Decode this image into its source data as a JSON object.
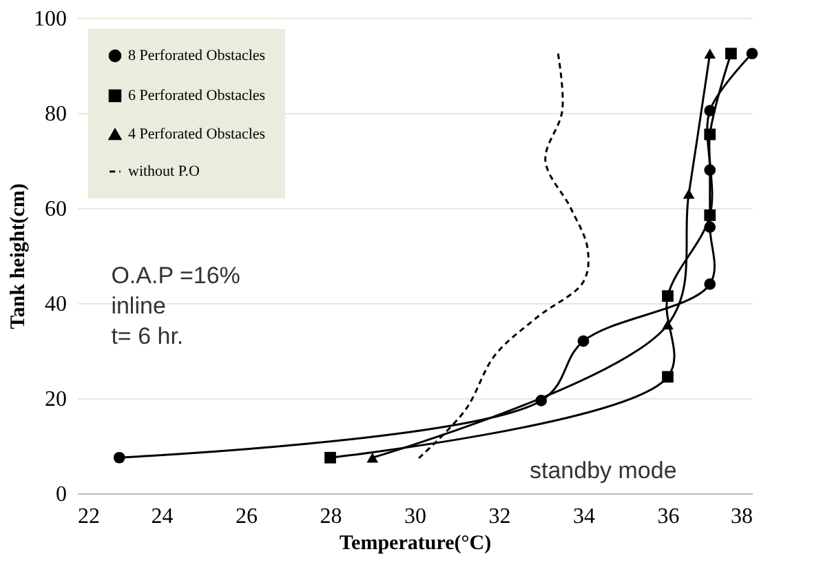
{
  "chart_data": {
    "type": "line",
    "xlabel": "Temperature(°C)",
    "ylabel": "Tank height(cm)",
    "xlim": [
      22,
      38
    ],
    "xticks": [
      22,
      24,
      26,
      28,
      30,
      32,
      34,
      36,
      38
    ],
    "ylim": [
      0,
      100
    ],
    "yticks": [
      0,
      20,
      40,
      60,
      80,
      100
    ],
    "grid": "y",
    "legend": "top left",
    "series": [
      {
        "name": "8 Perforated Obstacles",
        "color": "#000000",
        "marker": "circle",
        "line_style": "solid",
        "x": [
          23,
          33,
          34,
          37,
          37,
          37,
          37,
          38
        ],
        "values": [
          7.5,
          19.5,
          32,
          44,
          56,
          68,
          80.5,
          92.5
        ]
      },
      {
        "name": "6 Perforated Obstacles",
        "color": "#000000",
        "marker": "square",
        "line_style": "solid",
        "x": [
          28,
          36,
          36,
          37,
          37,
          37.5
        ],
        "values": [
          7.5,
          24.5,
          41.5,
          58.5,
          75.5,
          92.5
        ]
      },
      {
        "name": "4 Perforated Obstacles",
        "color": "#000000",
        "marker": "triangle",
        "line_style": "solid",
        "x": [
          29,
          36,
          36.5,
          37
        ],
        "values": [
          7.5,
          35.5,
          63,
          92.5
        ]
      },
      {
        "name": "without P.O",
        "color": "#000000",
        "marker": "none",
        "line_style": "dashed",
        "x": [
          30.1,
          31.2,
          31.9,
          32.9,
          34,
          34.1,
          33.7,
          33.1,
          33.5,
          33.4
        ],
        "values": [
          7.4,
          17.5,
          29,
          37,
          44.5,
          51.5,
          60,
          70,
          80.5,
          92.5
        ]
      }
    ],
    "annotations": [
      "O.A.P =16%\ninline\nt= 6 hr.",
      "standby mode"
    ]
  }
}
